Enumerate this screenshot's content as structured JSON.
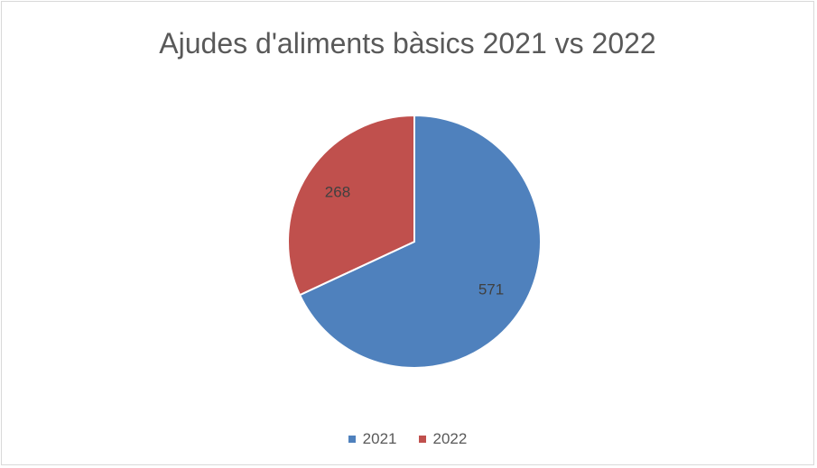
{
  "chart_data": {
    "type": "pie",
    "title": "Ajudes d'aliments bàsics 2021 vs 2022",
    "categories": [
      "2021",
      "2022"
    ],
    "values": [
      571,
      268
    ],
    "colors": [
      "#4f81bd",
      "#c0504d"
    ],
    "data_labels": [
      "571",
      "268"
    ],
    "legend_position": "bottom"
  }
}
